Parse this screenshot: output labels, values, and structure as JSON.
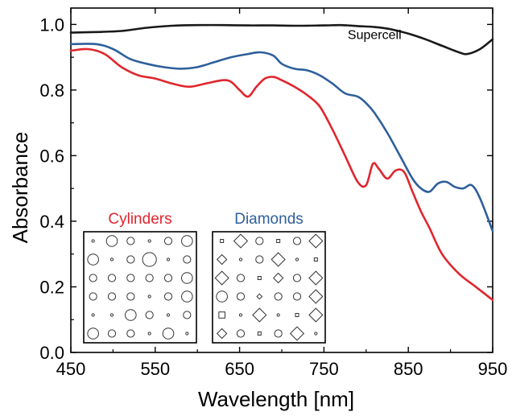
{
  "chart_data": {
    "type": "line",
    "title": "",
    "xlabel": "Wavelength [nm]",
    "ylabel": "Absorbance",
    "xlim": [
      450,
      950
    ],
    "ylim": [
      0.0,
      1.05
    ],
    "xticks": [
      "450",
      "550",
      "650",
      "750",
      "850",
      "950"
    ],
    "yticks": [
      "0.0",
      "0.2",
      "0.4",
      "0.6",
      "0.8",
      "1.0"
    ],
    "grid": false,
    "annotations": [
      {
        "text": "Supercell",
        "x": 810,
        "y": 0.965
      }
    ],
    "series": [
      {
        "name": "Supercell",
        "color": "#1a1a1a",
        "x": [
          450,
          480,
          510,
          540,
          570,
          600,
          630,
          660,
          690,
          720,
          750,
          770,
          790,
          810,
          830,
          850,
          870,
          890,
          910,
          920,
          935,
          950
        ],
        "y": [
          0.975,
          0.977,
          0.98,
          0.99,
          0.996,
          0.998,
          0.998,
          0.997,
          0.997,
          0.996,
          0.997,
          0.998,
          0.995,
          0.992,
          0.985,
          0.972,
          0.955,
          0.935,
          0.915,
          0.91,
          0.925,
          0.955
        ]
      },
      {
        "name": "Diamonds",
        "color": "#2e5f9b",
        "x": [
          450,
          480,
          500,
          520,
          540,
          560,
          580,
          600,
          620,
          640,
          660,
          675,
          690,
          700,
          715,
          730,
          745,
          760,
          775,
          790,
          800,
          810,
          825,
          840,
          855,
          865,
          875,
          885,
          895,
          905,
          915,
          925,
          935,
          950
        ],
        "y": [
          0.94,
          0.94,
          0.925,
          0.895,
          0.88,
          0.87,
          0.865,
          0.87,
          0.885,
          0.9,
          0.91,
          0.915,
          0.905,
          0.88,
          0.865,
          0.86,
          0.845,
          0.82,
          0.79,
          0.78,
          0.76,
          0.73,
          0.67,
          0.6,
          0.53,
          0.5,
          0.49,
          0.515,
          0.52,
          0.505,
          0.5,
          0.51,
          0.47,
          0.37
        ]
      },
      {
        "name": "Cylinders",
        "color": "#e0262e",
        "x": [
          450,
          470,
          490,
          510,
          530,
          550,
          570,
          590,
          610,
          630,
          640,
          650,
          660,
          670,
          680,
          690,
          700,
          715,
          730,
          745,
          760,
          775,
          790,
          800,
          808,
          815,
          825,
          835,
          845,
          855,
          865,
          875,
          890,
          910,
          930,
          950
        ],
        "y": [
          0.92,
          0.925,
          0.91,
          0.87,
          0.845,
          0.835,
          0.82,
          0.81,
          0.82,
          0.83,
          0.825,
          0.8,
          0.78,
          0.81,
          0.835,
          0.84,
          0.83,
          0.81,
          0.785,
          0.75,
          0.68,
          0.6,
          0.52,
          0.51,
          0.575,
          0.56,
          0.53,
          0.555,
          0.55,
          0.49,
          0.43,
          0.38,
          0.3,
          0.24,
          0.2,
          0.16
        ]
      }
    ],
    "insets": [
      {
        "label": "Cylinders",
        "color": "#e0262e",
        "shape": "circle",
        "sizes": [
          [
            1,
            3,
            2,
            1,
            2,
            3
          ],
          [
            3,
            1,
            2,
            4,
            1,
            2
          ],
          [
            2,
            2,
            2,
            2,
            2,
            3
          ],
          [
            2,
            2,
            2,
            1,
            2,
            3
          ],
          [
            1,
            1,
            3,
            2,
            1,
            2
          ],
          [
            3,
            2,
            2,
            1,
            3,
            1
          ]
        ]
      },
      {
        "label": "Diamonds",
        "color": "#2e5f9b",
        "shape": "mixed",
        "cells": [
          [
            "s1",
            "d3",
            "c2",
            "s1",
            "c2",
            "d3"
          ],
          [
            "d2",
            "c1",
            "c2",
            "d3",
            "c1",
            "s1"
          ],
          [
            "d3",
            "c2",
            "s1",
            "d2",
            "c2",
            "d3"
          ],
          [
            "c3",
            "c2",
            "d1",
            "c2",
            "c2",
            "d3"
          ],
          [
            "s2",
            "c1",
            "d3",
            "c1",
            "s1",
            "d3"
          ],
          [
            "d2",
            "c2",
            "s1",
            "c2",
            "d3",
            "c1"
          ]
        ]
      }
    ]
  }
}
